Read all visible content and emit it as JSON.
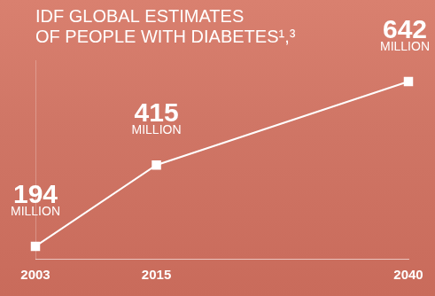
{
  "chart_data": {
    "type": "line",
    "title": [
      "IDF GLOBAL ESTIMATES",
      "OF PEOPLE WITH DIABETES¹,³"
    ],
    "x": [
      2003,
      2015,
      2040
    ],
    "values": [
      194,
      415,
      642
    ],
    "value_labels": [
      "194\nMILLION",
      "415\nMILLION",
      "642\nMILLION"
    ],
    "data_labels": true,
    "color": "#ffffff",
    "marker": "square",
    "xlim": [
      2003,
      2040
    ],
    "xticks": [
      2003,
      2015,
      2040
    ],
    "ylim": [
      160,
      700
    ],
    "tick_labels": "x",
    "grid": false
  }
}
